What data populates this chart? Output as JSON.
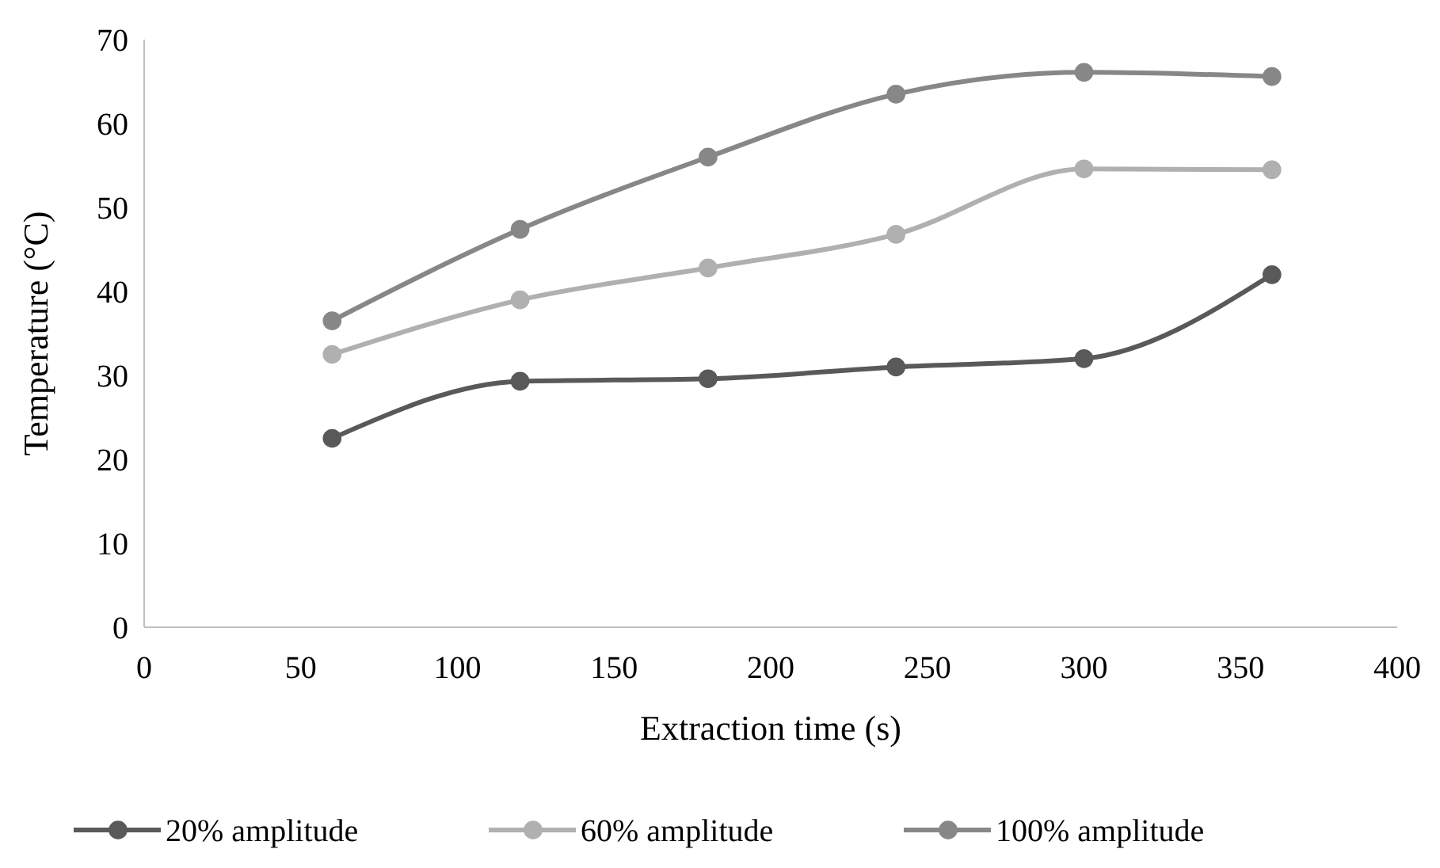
{
  "chart_data": {
    "type": "line",
    "xlabel": "Extraction time (s)",
    "ylabel": "Temperature (°C)",
    "x": [
      60,
      120,
      180,
      240,
      300,
      360
    ],
    "series": [
      {
        "name": "20% amplitude",
        "color": "#595959",
        "values": [
          22.5,
          29.3,
          29.6,
          31,
          32,
          42
        ]
      },
      {
        "name": "60% amplitude",
        "color": "#b0b0b0",
        "values": [
          32.5,
          39,
          42.8,
          46.8,
          54.6,
          54.5
        ]
      },
      {
        "name": "100% amplitude",
        "color": "#878787",
        "values": [
          36.5,
          47.4,
          56,
          63.5,
          66.1,
          65.6
        ]
      }
    ],
    "xlim": [
      0,
      400
    ],
    "xticks": [
      0,
      50,
      100,
      150,
      200,
      250,
      300,
      350,
      400
    ],
    "ylim": [
      0,
      70
    ],
    "yticks": [
      0,
      10,
      20,
      30,
      40,
      50,
      60,
      70
    ],
    "grid": false,
    "legend": "bottom",
    "marker": "circle",
    "line_style": "solid"
  }
}
